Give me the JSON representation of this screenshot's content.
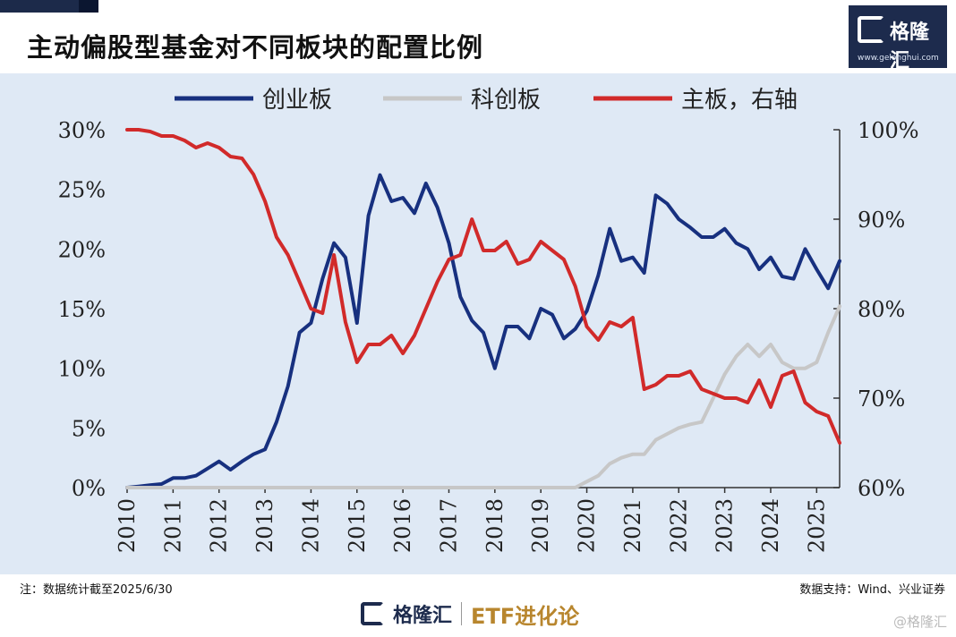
{
  "title": "主动偏股型基金对不同板块的配置比例",
  "logo": {
    "name": "格隆汇",
    "url": "www.gelonghui.com"
  },
  "note": "注：数据统计截至2025/6/30",
  "source": "数据支持：Wind、兴业证券",
  "footer": {
    "brand": "格隆汇",
    "product": "ETF进化论"
  },
  "corner_mark": "@格隆汇",
  "colors": {
    "cyb": "#17307f",
    "kcb": "#c7c7c7",
    "zb": "#d12a2a",
    "panel": "#dfe9f5"
  },
  "chart_data": {
    "type": "line",
    "title": "主动偏股型基金对不同板块的配置比例",
    "legend": [
      "创业板",
      "科创板",
      "主板，右轴"
    ],
    "legend_position": "top",
    "x_ticks": [
      "2010",
      "2011",
      "2012",
      "2013",
      "2014",
      "2015",
      "2016",
      "2017",
      "2018",
      "2019",
      "2020",
      "2021",
      "2022",
      "2023",
      "2024",
      "2025"
    ],
    "xlim": [
      2010.0,
      2025.5
    ],
    "y_left": {
      "ticks": [
        "0%",
        "5%",
        "10%",
        "15%",
        "20%",
        "25%",
        "30%"
      ],
      "lim": [
        0,
        30
      ]
    },
    "y_right": {
      "ticks": [
        "60%",
        "70%",
        "80%",
        "90%",
        "100%"
      ],
      "lim": [
        60,
        100
      ]
    },
    "grid": false,
    "series": [
      {
        "name": "创业板",
        "axis": "left",
        "x": [
          2010.0,
          2010.25,
          2010.5,
          2010.75,
          2011.0,
          2011.25,
          2011.5,
          2011.75,
          2012.0,
          2012.25,
          2012.5,
          2012.75,
          2013.0,
          2013.25,
          2013.5,
          2013.75,
          2014.0,
          2014.25,
          2014.5,
          2014.75,
          2015.0,
          2015.25,
          2015.5,
          2015.75,
          2016.0,
          2016.25,
          2016.5,
          2016.75,
          2017.0,
          2017.25,
          2017.5,
          2017.75,
          2018.0,
          2018.25,
          2018.5,
          2018.75,
          2019.0,
          2019.25,
          2019.5,
          2019.75,
          2020.0,
          2020.25,
          2020.5,
          2020.75,
          2021.0,
          2021.25,
          2021.5,
          2021.75,
          2022.0,
          2022.25,
          2022.5,
          2022.75,
          2023.0,
          2023.25,
          2023.5,
          2023.75,
          2024.0,
          2024.25,
          2024.5,
          2024.75,
          2025.0,
          2025.25,
          2025.5
        ],
        "values": [
          0.0,
          0.1,
          0.2,
          0.3,
          0.8,
          0.8,
          1.0,
          1.6,
          2.2,
          1.5,
          2.2,
          2.8,
          3.2,
          5.5,
          8.5,
          13.0,
          13.8,
          17.5,
          20.5,
          19.3,
          13.8,
          22.8,
          26.2,
          24.0,
          24.3,
          23.0,
          25.5,
          23.5,
          20.5,
          16.0,
          14.0,
          13.0,
          10.0,
          13.5,
          13.5,
          12.5,
          15.0,
          14.5,
          12.5,
          13.3,
          14.8,
          17.8,
          21.7,
          19.0,
          19.3,
          18.0,
          24.5,
          23.8,
          22.5,
          21.8,
          21.0,
          21.0,
          21.7,
          20.5,
          20.0,
          18.3,
          19.3,
          17.7,
          17.5,
          20.0,
          18.3,
          16.7,
          19.0
        ]
      },
      {
        "name": "科创板",
        "axis": "left",
        "x": [
          2010.0,
          2019.75,
          2020.0,
          2020.25,
          2020.5,
          2020.75,
          2021.0,
          2021.25,
          2021.5,
          2021.75,
          2022.0,
          2022.25,
          2022.5,
          2022.75,
          2023.0,
          2023.25,
          2023.5,
          2023.75,
          2024.0,
          2024.25,
          2024.5,
          2024.75,
          2025.0,
          2025.25,
          2025.5
        ],
        "values": [
          0.0,
          0.0,
          0.5,
          1.0,
          2.0,
          2.5,
          2.8,
          2.8,
          4.0,
          4.5,
          5.0,
          5.3,
          5.5,
          7.5,
          9.5,
          11.0,
          12.0,
          11.0,
          12.0,
          10.5,
          10.0,
          10.0,
          10.5,
          13.0,
          15.2
        ]
      },
      {
        "name": "主板，右轴",
        "axis": "right",
        "x": [
          2010.0,
          2010.25,
          2010.5,
          2010.75,
          2011.0,
          2011.25,
          2011.5,
          2011.75,
          2012.0,
          2012.25,
          2012.5,
          2012.75,
          2013.0,
          2013.25,
          2013.5,
          2013.75,
          2014.0,
          2014.25,
          2014.5,
          2014.75,
          2015.0,
          2015.25,
          2015.5,
          2015.75,
          2016.0,
          2016.25,
          2016.5,
          2016.75,
          2017.0,
          2017.25,
          2017.5,
          2017.75,
          2018.0,
          2018.25,
          2018.5,
          2018.75,
          2019.0,
          2019.25,
          2019.5,
          2019.75,
          2020.0,
          2020.25,
          2020.5,
          2020.75,
          2021.0,
          2021.25,
          2021.5,
          2021.75,
          2022.0,
          2022.25,
          2022.5,
          2022.75,
          2023.0,
          2023.25,
          2023.5,
          2023.75,
          2024.0,
          2024.25,
          2024.5,
          2024.75,
          2025.0,
          2025.25,
          2025.5
        ],
        "values": [
          100.0,
          100.0,
          99.8,
          99.3,
          99.3,
          98.8,
          98.0,
          98.5,
          98.0,
          97.0,
          96.8,
          95.0,
          92.0,
          88.0,
          86.0,
          83.0,
          80.0,
          79.5,
          86.0,
          78.5,
          74.0,
          76.0,
          76.0,
          77.0,
          75.0,
          77.0,
          80.0,
          83.0,
          85.5,
          86.0,
          90.0,
          86.5,
          86.5,
          87.5,
          85.0,
          85.5,
          87.5,
          86.5,
          85.5,
          82.5,
          78.0,
          76.5,
          78.5,
          78.0,
          79.0,
          71.0,
          71.5,
          72.5,
          72.5,
          73.0,
          71.0,
          70.5,
          70.0,
          70.0,
          69.5,
          72.0,
          69.0,
          72.5,
          73.0,
          69.5,
          68.5,
          68.0,
          65.0
        ]
      }
    ]
  }
}
